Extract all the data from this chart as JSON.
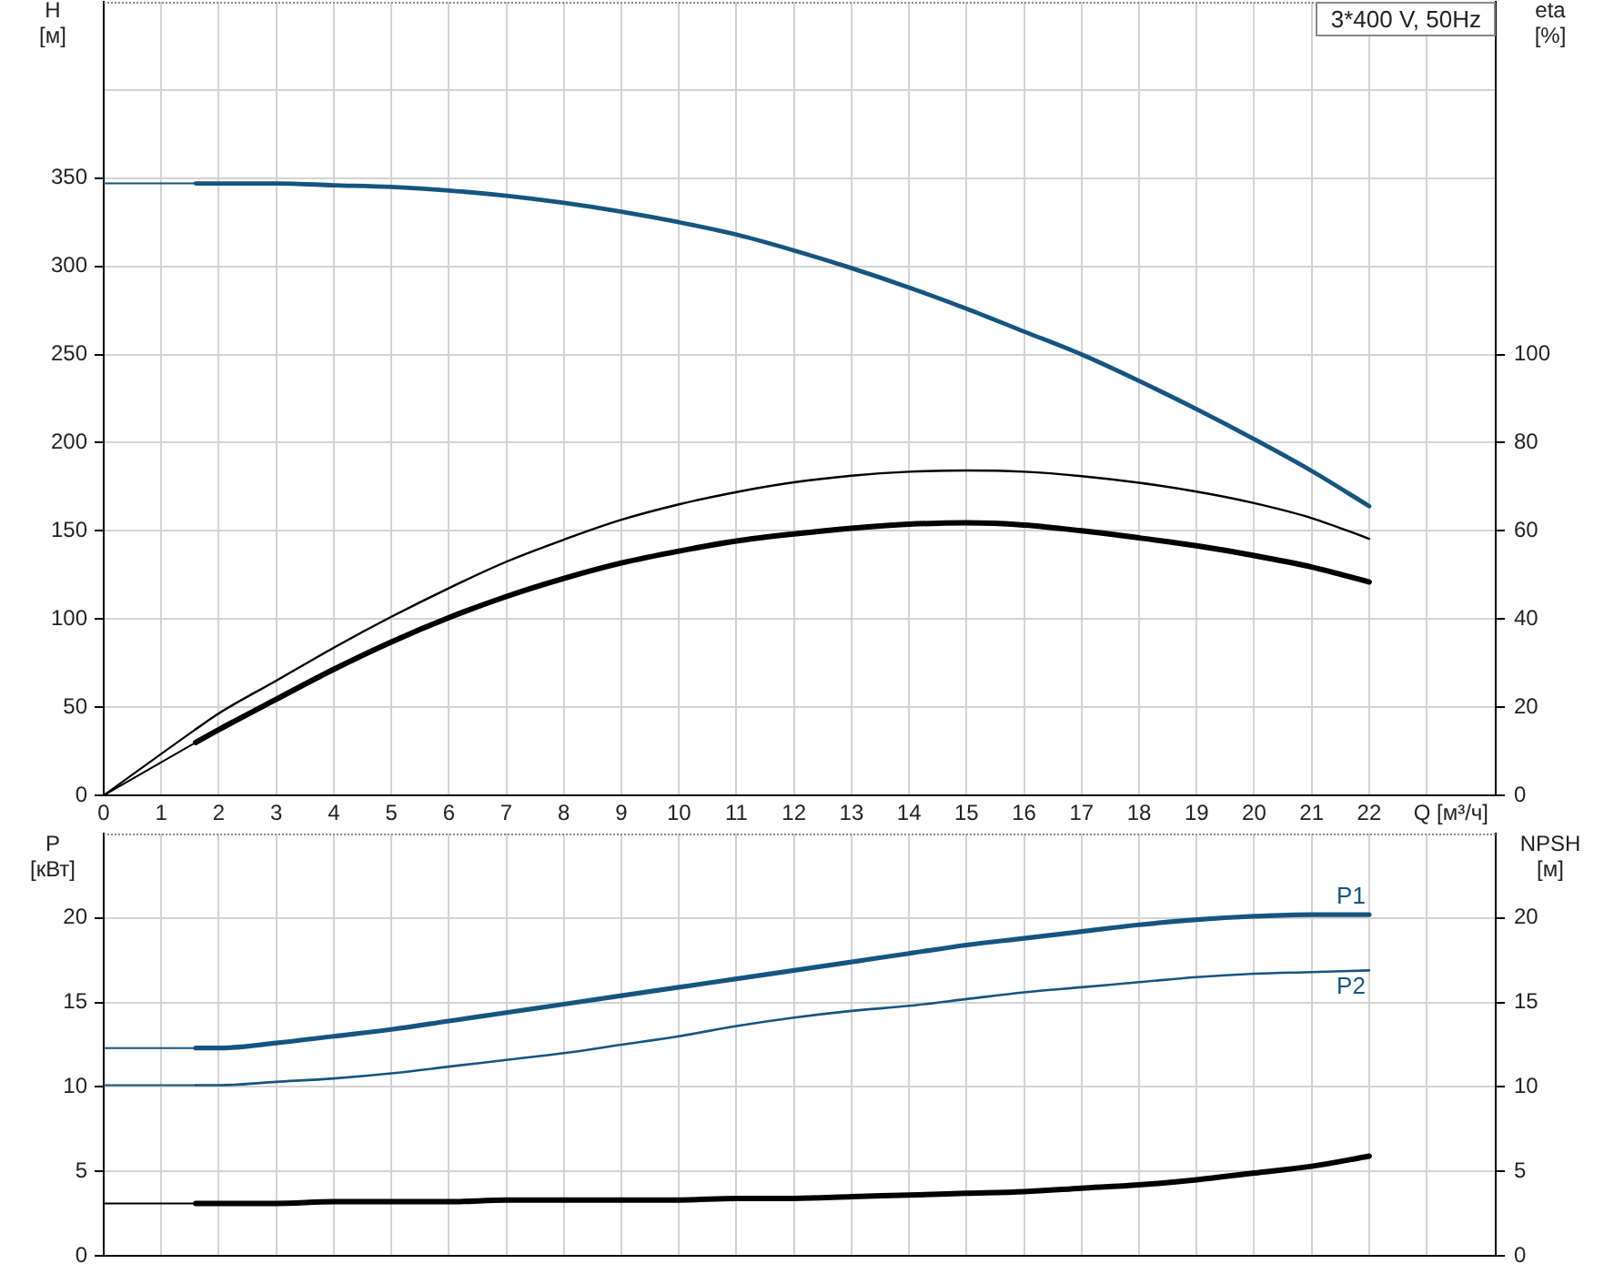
{
  "chart_data": [
    {
      "type": "line",
      "xlabel": "Q [м³/ч]",
      "ylabel": "H [м]",
      "y2label": "eta [%]",
      "annotations": [
        "3*400 V, 50Hz"
      ],
      "x": [
        0,
        1.6,
        2,
        3,
        4,
        5,
        6,
        7,
        8,
        9,
        10,
        11,
        12,
        13,
        14,
        15,
        16,
        17,
        18,
        19,
        20,
        21,
        22
      ],
      "series": [
        {
          "color": "#15557f",
          "values": [
            347,
            347,
            347,
            347,
            346,
            345,
            343,
            340,
            336,
            331,
            325,
            318,
            309,
            299,
            288,
            276,
            263,
            250,
            235,
            219,
            202,
            184,
            164
          ]
        },
        {
          "color": "#000000",
          "axis": "y2",
          "values": [
            0,
            15,
            18.6,
            26,
            33.5,
            40.5,
            47,
            53,
            58,
            62.5,
            66,
            68.8,
            71,
            72.5,
            73.4,
            73.7,
            73.4,
            72.4,
            70.9,
            68.9,
            66.3,
            62.9,
            58.2
          ]
        },
        {
          "color": "#000000",
          "axis": "y2",
          "values": [
            0,
            12,
            14.9,
            21.8,
            28.6,
            34.8,
            40.3,
            45.1,
            49.2,
            52.7,
            55.4,
            57.7,
            59.3,
            60.6,
            61.5,
            61.8,
            61.3,
            60.0,
            58.4,
            56.6,
            54.4,
            51.8,
            48.4
          ]
        }
      ],
      "xlim": [
        0,
        24.2
      ],
      "xticks": [
        0,
        1,
        2,
        3,
        4,
        5,
        6,
        7,
        8,
        9,
        10,
        11,
        12,
        13,
        14,
        15,
        16,
        17,
        18,
        19,
        20,
        21,
        22,
        {
          "value": 23,
          "label": null
        }
      ],
      "ylim": [
        0,
        450
      ],
      "yticks": [
        0,
        50,
        100,
        150,
        200,
        250,
        300,
        350,
        {
          "value": 400,
          "label": null
        }
      ],
      "y2lim": [
        0,
        180
      ],
      "y2ticks": [
        0,
        20,
        40,
        60,
        80,
        100
      ],
      "grid": true
    },
    {
      "type": "line",
      "ylabel": "P [кВт]",
      "y2label": "NPSH [м]",
      "x": [
        0,
        1.6,
        2,
        3,
        4,
        5,
        6,
        7,
        8,
        9,
        10,
        11,
        12,
        13,
        14,
        15,
        16,
        17,
        18,
        19,
        20,
        21,
        22
      ],
      "series": [
        {
          "name": "P1",
          "color": "#15557f",
          "values": [
            12.3,
            12.3,
            12.3,
            12.6,
            13.0,
            13.4,
            13.9,
            14.4,
            14.9,
            15.4,
            15.9,
            16.4,
            16.9,
            17.4,
            17.9,
            18.4,
            18.8,
            19.2,
            19.6,
            19.9,
            20.1,
            20.2,
            20.2
          ]
        },
        {
          "name": "P2",
          "color": "#15557f",
          "values": [
            10.1,
            10.1,
            10.1,
            10.3,
            10.5,
            10.8,
            11.2,
            11.6,
            12.0,
            12.5,
            13.0,
            13.6,
            14.1,
            14.5,
            14.8,
            15.2,
            15.6,
            15.9,
            16.2,
            16.5,
            16.7,
            16.8,
            16.9
          ]
        },
        {
          "color": "#000000",
          "axis": "y2",
          "values": [
            3.1,
            3.1,
            3.1,
            3.1,
            3.2,
            3.2,
            3.2,
            3.3,
            3.3,
            3.3,
            3.3,
            3.4,
            3.4,
            3.5,
            3.6,
            3.7,
            3.8,
            4.0,
            4.2,
            4.5,
            4.9,
            5.3,
            5.9
          ]
        }
      ],
      "xlim": [
        0,
        24.2
      ],
      "xticks": [
        0,
        1,
        2,
        3,
        4,
        5,
        6,
        7,
        8,
        9,
        10,
        11,
        12,
        13,
        14,
        15,
        16,
        17,
        18,
        19,
        20,
        21,
        22,
        {
          "value": 23,
          "label": null
        }
      ],
      "ylim": [
        0,
        25
      ],
      "yticks": [
        0,
        5,
        10,
        15,
        20
      ],
      "y2lim": [
        0,
        25
      ],
      "y2ticks": [
        0,
        5,
        10,
        15,
        20
      ],
      "tick_labels": "y",
      "grid": true
    }
  ]
}
